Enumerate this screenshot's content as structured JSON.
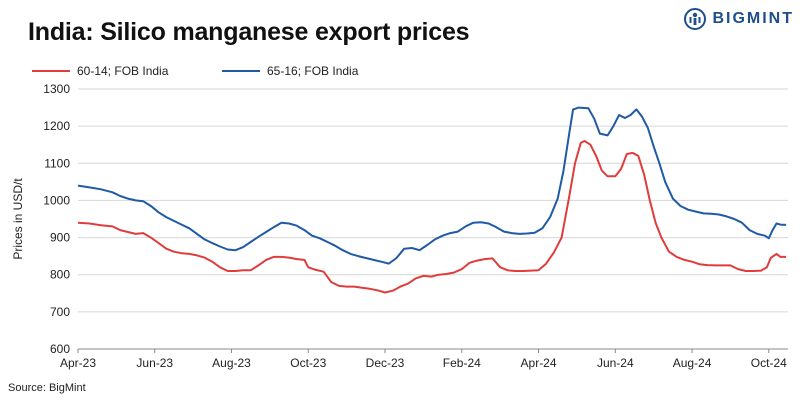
{
  "header": {
    "title": "India: Silico manganese export prices",
    "brand": "BIGMINT"
  },
  "footer": {
    "source": "Source: BigMint"
  },
  "colors": {
    "series1": "#e03c3c",
    "series2": "#1f5aa6",
    "grid": "#d6d6d6"
  },
  "chart_data": {
    "type": "line",
    "title": "India: Silico manganese export prices",
    "xlabel": "",
    "ylabel": "Prices in USD/t",
    "ylim": [
      600,
      1300
    ],
    "yticks": [
      600,
      700,
      800,
      900,
      1000,
      1100,
      1200,
      1300
    ],
    "xlim": [
      0,
      18.5
    ],
    "xticks": [
      {
        "label": "Apr-23",
        "x": 0
      },
      {
        "label": "Jun-23",
        "x": 2
      },
      {
        "label": "Aug-23",
        "x": 4
      },
      {
        "label": "Oct-23",
        "x": 6
      },
      {
        "label": "Dec-23",
        "x": 8
      },
      {
        "label": "Feb-24",
        "x": 10
      },
      {
        "label": "Apr-24",
        "x": 12
      },
      {
        "label": "Jun-24",
        "x": 14
      },
      {
        "label": "Aug-24",
        "x": 16
      },
      {
        "label": "Oct-24",
        "x": 18
      }
    ],
    "x_unit": "months since Apr-23",
    "series": [
      {
        "name": "60-14; FOB India",
        "color": "#e03c3c",
        "points": [
          [
            0,
            940
          ],
          [
            0.3,
            938
          ],
          [
            0.6,
            933
          ],
          [
            0.9,
            930
          ],
          [
            1.1,
            920
          ],
          [
            1.3,
            915
          ],
          [
            1.5,
            910
          ],
          [
            1.7,
            912
          ],
          [
            1.9,
            900
          ],
          [
            2.1,
            885
          ],
          [
            2.3,
            870
          ],
          [
            2.5,
            862
          ],
          [
            2.7,
            858
          ],
          [
            2.9,
            856
          ],
          [
            3.1,
            852
          ],
          [
            3.3,
            846
          ],
          [
            3.5,
            835
          ],
          [
            3.7,
            820
          ],
          [
            3.9,
            810
          ],
          [
            4.1,
            810
          ],
          [
            4.3,
            812
          ],
          [
            4.5,
            812
          ],
          [
            4.7,
            825
          ],
          [
            4.9,
            840
          ],
          [
            5.1,
            848
          ],
          [
            5.3,
            848
          ],
          [
            5.5,
            846
          ],
          [
            5.7,
            842
          ],
          [
            5.9,
            840
          ],
          [
            6.0,
            820
          ],
          [
            6.2,
            813
          ],
          [
            6.4,
            808
          ],
          [
            6.6,
            780
          ],
          [
            6.8,
            770
          ],
          [
            7.0,
            768
          ],
          [
            7.2,
            768
          ],
          [
            7.4,
            765
          ],
          [
            7.6,
            762
          ],
          [
            7.8,
            758
          ],
          [
            8.0,
            752
          ],
          [
            8.2,
            757
          ],
          [
            8.4,
            768
          ],
          [
            8.6,
            776
          ],
          [
            8.8,
            790
          ],
          [
            9.0,
            797
          ],
          [
            9.2,
            795
          ],
          [
            9.4,
            800
          ],
          [
            9.6,
            802
          ],
          [
            9.8,
            806
          ],
          [
            10.0,
            815
          ],
          [
            10.2,
            832
          ],
          [
            10.4,
            838
          ],
          [
            10.6,
            842
          ],
          [
            10.8,
            844
          ],
          [
            11.0,
            820
          ],
          [
            11.2,
            812
          ],
          [
            11.4,
            810
          ],
          [
            11.6,
            810
          ],
          [
            11.8,
            811
          ],
          [
            12.0,
            812
          ],
          [
            12.2,
            830
          ],
          [
            12.4,
            860
          ],
          [
            12.6,
            900
          ],
          [
            12.8,
            1010
          ],
          [
            12.95,
            1100
          ],
          [
            13.1,
            1155
          ],
          [
            13.2,
            1160
          ],
          [
            13.35,
            1150
          ],
          [
            13.5,
            1120
          ],
          [
            13.65,
            1080
          ],
          [
            13.8,
            1065
          ],
          [
            14.0,
            1065
          ],
          [
            14.15,
            1085
          ],
          [
            14.3,
            1125
          ],
          [
            14.45,
            1128
          ],
          [
            14.6,
            1120
          ],
          [
            14.75,
            1070
          ],
          [
            14.9,
            1000
          ],
          [
            15.05,
            940
          ],
          [
            15.2,
            900
          ],
          [
            15.4,
            862
          ],
          [
            15.6,
            848
          ],
          [
            15.8,
            840
          ],
          [
            16.0,
            835
          ],
          [
            16.2,
            828
          ],
          [
            16.4,
            826
          ],
          [
            16.6,
            825
          ],
          [
            16.8,
            825
          ],
          [
            17.0,
            825
          ],
          [
            17.2,
            815
          ],
          [
            17.4,
            810
          ],
          [
            17.6,
            810
          ],
          [
            17.8,
            811
          ],
          [
            17.95,
            820
          ],
          [
            18.05,
            845
          ],
          [
            18.2,
            856
          ],
          [
            18.3,
            848
          ],
          [
            18.45,
            848
          ]
        ]
      },
      {
        "name": "65-16; FOB India",
        "color": "#1f5aa6",
        "points": [
          [
            0,
            1040
          ],
          [
            0.3,
            1035
          ],
          [
            0.6,
            1030
          ],
          [
            0.9,
            1022
          ],
          [
            1.1,
            1012
          ],
          [
            1.3,
            1005
          ],
          [
            1.5,
            1000
          ],
          [
            1.7,
            998
          ],
          [
            1.9,
            985
          ],
          [
            2.1,
            968
          ],
          [
            2.3,
            955
          ],
          [
            2.5,
            945
          ],
          [
            2.7,
            935
          ],
          [
            2.9,
            925
          ],
          [
            3.1,
            910
          ],
          [
            3.3,
            895
          ],
          [
            3.5,
            885
          ],
          [
            3.7,
            876
          ],
          [
            3.9,
            868
          ],
          [
            4.1,
            866
          ],
          [
            4.3,
            874
          ],
          [
            4.5,
            888
          ],
          [
            4.7,
            902
          ],
          [
            4.9,
            915
          ],
          [
            5.1,
            928
          ],
          [
            5.3,
            940
          ],
          [
            5.5,
            938
          ],
          [
            5.7,
            932
          ],
          [
            5.9,
            920
          ],
          [
            6.1,
            905
          ],
          [
            6.3,
            898
          ],
          [
            6.5,
            888
          ],
          [
            6.7,
            878
          ],
          [
            6.9,
            866
          ],
          [
            7.1,
            856
          ],
          [
            7.3,
            850
          ],
          [
            7.5,
            845
          ],
          [
            7.7,
            840
          ],
          [
            7.9,
            835
          ],
          [
            8.1,
            830
          ],
          [
            8.3,
            845
          ],
          [
            8.5,
            870
          ],
          [
            8.7,
            872
          ],
          [
            8.9,
            866
          ],
          [
            9.1,
            880
          ],
          [
            9.3,
            895
          ],
          [
            9.5,
            905
          ],
          [
            9.7,
            912
          ],
          [
            9.9,
            916
          ],
          [
            10.1,
            930
          ],
          [
            10.3,
            940
          ],
          [
            10.5,
            941
          ],
          [
            10.7,
            938
          ],
          [
            10.9,
            928
          ],
          [
            11.1,
            916
          ],
          [
            11.3,
            912
          ],
          [
            11.5,
            910
          ],
          [
            11.7,
            911
          ],
          [
            11.9,
            913
          ],
          [
            12.1,
            925
          ],
          [
            12.3,
            955
          ],
          [
            12.5,
            1005
          ],
          [
            12.65,
            1080
          ],
          [
            12.8,
            1180
          ],
          [
            12.9,
            1245
          ],
          [
            13.05,
            1250
          ],
          [
            13.3,
            1248
          ],
          [
            13.45,
            1220
          ],
          [
            13.6,
            1180
          ],
          [
            13.8,
            1175
          ],
          [
            13.95,
            1200
          ],
          [
            14.1,
            1230
          ],
          [
            14.25,
            1222
          ],
          [
            14.4,
            1230
          ],
          [
            14.55,
            1245
          ],
          [
            14.7,
            1225
          ],
          [
            14.85,
            1195
          ],
          [
            15.0,
            1145
          ],
          [
            15.15,
            1100
          ],
          [
            15.3,
            1050
          ],
          [
            15.5,
            1005
          ],
          [
            15.7,
            985
          ],
          [
            15.9,
            975
          ],
          [
            16.1,
            970
          ],
          [
            16.3,
            965
          ],
          [
            16.5,
            964
          ],
          [
            16.7,
            962
          ],
          [
            16.9,
            957
          ],
          [
            17.1,
            950
          ],
          [
            17.3,
            940
          ],
          [
            17.5,
            920
          ],
          [
            17.7,
            910
          ],
          [
            17.9,
            905
          ],
          [
            18.0,
            898
          ],
          [
            18.1,
            920
          ],
          [
            18.2,
            938
          ],
          [
            18.3,
            935
          ],
          [
            18.45,
            934
          ]
        ]
      }
    ]
  }
}
